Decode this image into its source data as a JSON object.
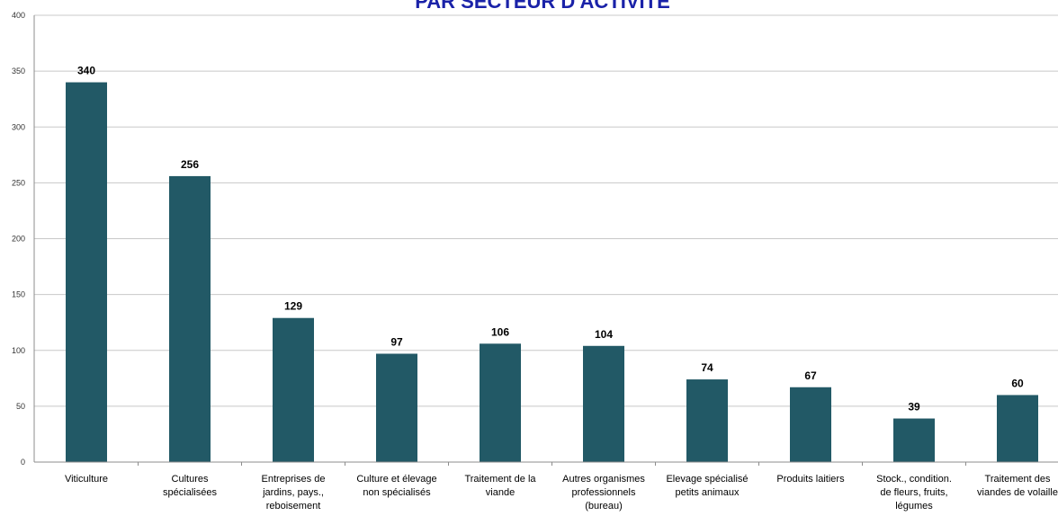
{
  "chart_data": {
    "type": "bar",
    "title": "PAR SECTEUR D'ACTIVITÉ",
    "xlabel": "",
    "ylabel": "",
    "ylim": [
      0,
      400
    ],
    "yticks": [
      0,
      50,
      100,
      150,
      200,
      250,
      300,
      350,
      400
    ],
    "grid": true,
    "legend": "none",
    "categories": [
      [
        "Viticulture"
      ],
      [
        "Cultures",
        "spécialisées"
      ],
      [
        "Entreprises de",
        "jardins, pays.,",
        "reboisement"
      ],
      [
        "Culture et élevage",
        "non spécialisés"
      ],
      [
        "Traitement de la",
        "viande"
      ],
      [
        "Autres organismes",
        "professionnels",
        "(bureau)"
      ],
      [
        "Elevage spécialisé",
        "petits animaux"
      ],
      [
        "Produits laitiers"
      ],
      [
        "Stock., condition.",
        "de fleurs, fruits,",
        "légumes"
      ],
      [
        "Traitement des",
        "viandes de volaille"
      ]
    ],
    "values": [
      340,
      256,
      129,
      97,
      106,
      104,
      74,
      67,
      39,
      60
    ],
    "colors": {
      "bar": "#225966",
      "title": "#1a22a8",
      "grid": "#c8c8c8",
      "axis": "#8c8c8c"
    }
  }
}
